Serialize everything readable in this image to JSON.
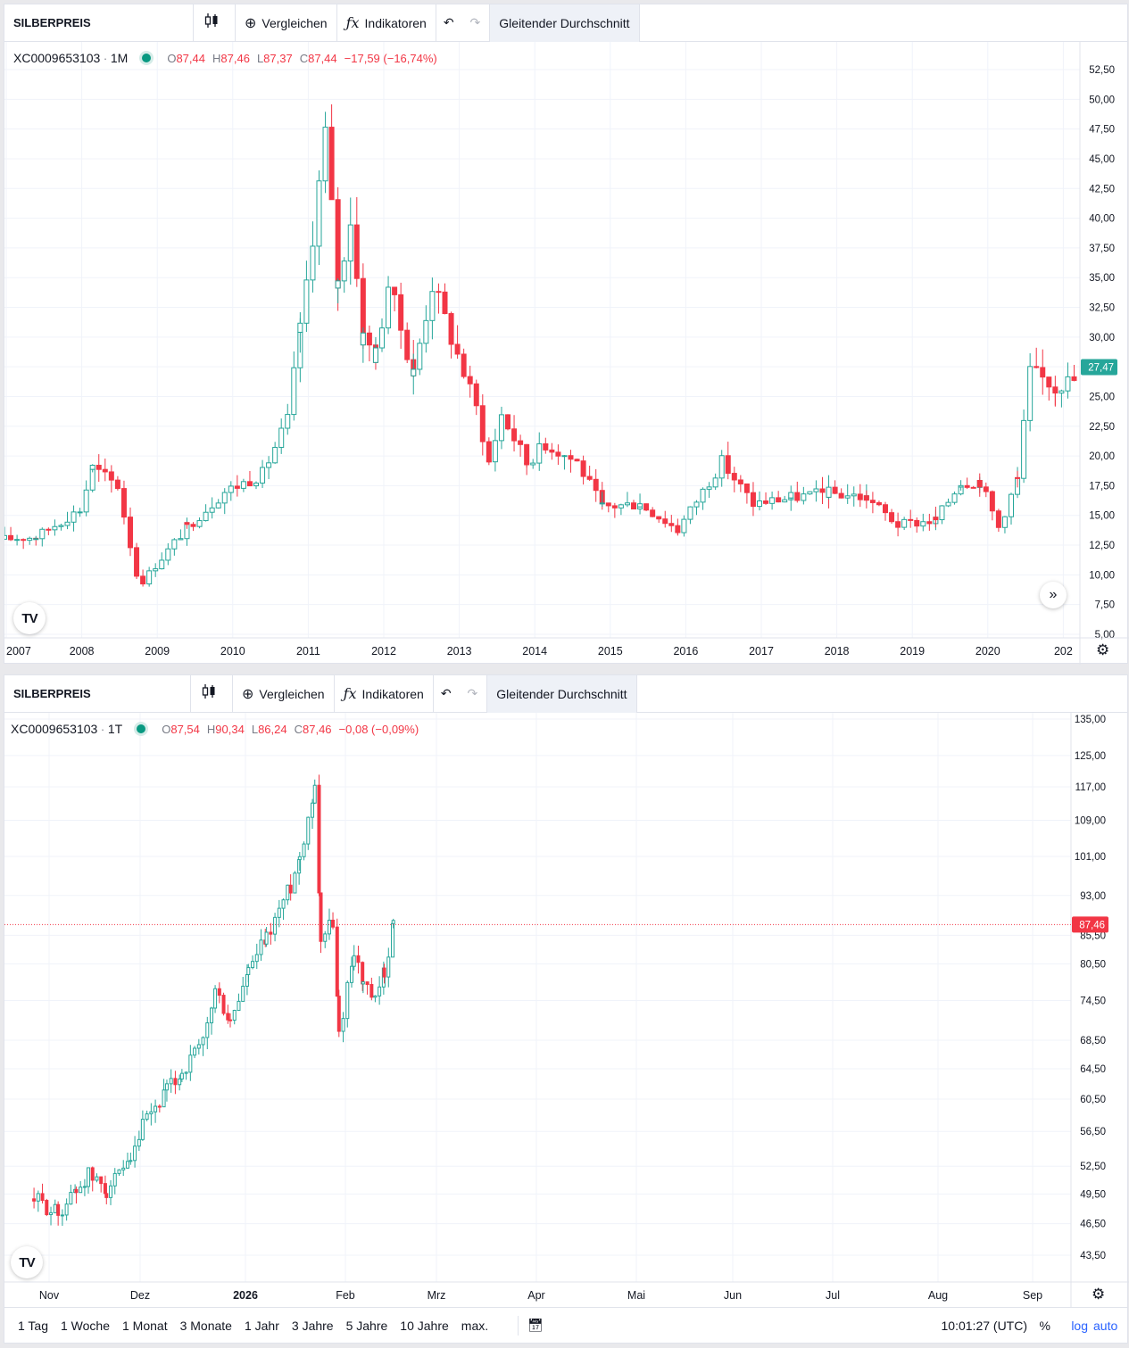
{
  "charts": [
    {
      "toolbar": {
        "symbol": "SILBERPREIS",
        "compare_label": "Vergleichen",
        "indicators_label": "Indikatoren",
        "moving_average_label": "Gleitender Durchschnitt"
      },
      "legend": {
        "code": "XC0009653103",
        "interval": "1M",
        "o_key": "O",
        "o": "87,44",
        "h_key": "H",
        "h": "87,46",
        "l_key": "L",
        "l": "87,37",
        "c_key": "C",
        "c": "87,44",
        "change": "−17,59 (−16,74%)"
      },
      "y_tick_labels": [
        "52,50",
        "50,00",
        "47,50",
        "45,00",
        "42,50",
        "40,00",
        "37,50",
        "35,00",
        "32,50",
        "30,00",
        "27,50",
        "25,00",
        "22,50",
        "20,00",
        "17,50",
        "15,00",
        "12,50",
        "10,00",
        "7,50",
        "5,00"
      ],
      "x_tick_labels": [
        "2007",
        "2008",
        "2009",
        "2010",
        "2011",
        "2012",
        "2013",
        "2014",
        "2015",
        "2016",
        "2017",
        "2018",
        "2019",
        "2020",
        "202"
      ],
      "last_price_label": "27,47",
      "last_price_color": "#26a69a"
    },
    {
      "toolbar": {
        "symbol": "SILBERPREIS",
        "compare_label": "Vergleichen",
        "indicators_label": "Indikatoren",
        "moving_average_label": "Gleitender Durchschnitt"
      },
      "legend": {
        "code": "XC0009653103",
        "interval": "1T",
        "o_key": "O",
        "o": "87,54",
        "h_key": "H",
        "h": "90,34",
        "l_key": "L",
        "l": "86,24",
        "c_key": "C",
        "c": "87,46",
        "change": "−0,08 (−0,09%)"
      },
      "y_tick_labels": [
        "135,00",
        "125,00",
        "117,00",
        "109,00",
        "101,00",
        "93,00",
        "85,50",
        "80,50",
        "74,50",
        "68,50",
        "64,50",
        "60,50",
        "56,50",
        "52,50",
        "49,50",
        "46,50",
        "43,50"
      ],
      "x_tick_labels": [
        "Nov",
        "Dez",
        "2026",
        "Feb",
        "Mrz",
        "Apr",
        "Mai",
        "Jun",
        "Jul",
        "Aug",
        "Sep"
      ],
      "last_price_label": "87,46",
      "last_price_color": "#f23645"
    }
  ],
  "bottom_bar": {
    "ranges": [
      "1 Tag",
      "1 Woche",
      "1 Monat",
      "3 Monate",
      "1 Jahr",
      "3 Jahre",
      "5 Jahre",
      "10 Jahre",
      "max."
    ],
    "time": "10:01:27 (UTC)",
    "percent_label": "%",
    "log_label": "log",
    "auto_label": "auto"
  },
  "colors": {
    "up": "#26a69a",
    "down": "#f23645",
    "accent": "#2962ff"
  },
  "icons": [
    "candles-icon",
    "plus-circle-icon",
    "fx-icon",
    "undo-icon",
    "redo-icon",
    "gear-icon",
    "scroll-right-icon",
    "calendar-icon",
    "tradingview-logo"
  ],
  "chart_data": [
    {
      "type": "candlestick",
      "title": "SILBERPREIS",
      "interval": "1M",
      "x_range": [
        "2007",
        "2021"
      ],
      "ylim": [
        5,
        52.5
      ],
      "grid": true,
      "anchors": [
        [
          "2007-01",
          13.0
        ],
        [
          "2007-06",
          13.2
        ],
        [
          "2008-01",
          15.5
        ],
        [
          "2008-03",
          19.0
        ],
        [
          "2008-07",
          17.5
        ],
        [
          "2008-10",
          10.0
        ],
        [
          "2008-11",
          9.5
        ],
        [
          "2009-06",
          14.0
        ],
        [
          "2009-12",
          17.0
        ],
        [
          "2010-06",
          18.5
        ],
        [
          "2010-10",
          23.0
        ],
        [
          "2010-12",
          30.5
        ],
        [
          "2011-04",
          47.0
        ],
        [
          "2011-06",
          34.5
        ],
        [
          "2011-08",
          40.0
        ],
        [
          "2011-10",
          30.0
        ],
        [
          "2011-12",
          28.5
        ],
        [
          "2012-02",
          34.5
        ],
        [
          "2012-06",
          27.0
        ],
        [
          "2012-09",
          34.5
        ],
        [
          "2012-12",
          30.0
        ],
        [
          "2013-04",
          24.0
        ],
        [
          "2013-06",
          19.5
        ],
        [
          "2013-08",
          23.5
        ],
        [
          "2013-12",
          19.5
        ],
        [
          "2014-03",
          21.0
        ],
        [
          "2014-08",
          19.5
        ],
        [
          "2014-12",
          15.7
        ],
        [
          "2015-06",
          16.0
        ],
        [
          "2015-12",
          13.8
        ],
        [
          "2016-07",
          19.5
        ],
        [
          "2016-12",
          16.0
        ],
        [
          "2017-06",
          16.5
        ],
        [
          "2017-12",
          16.9
        ],
        [
          "2018-06",
          16.5
        ],
        [
          "2018-11",
          14.2
        ],
        [
          "2019-05",
          14.6
        ],
        [
          "2019-09",
          17.8
        ],
        [
          "2019-12",
          17.9
        ],
        [
          "2020-03",
          14.0
        ],
        [
          "2020-06",
          18.0
        ],
        [
          "2020-08",
          27.0
        ],
        [
          "2020-12",
          26.0
        ],
        [
          "2021-04",
          26.5
        ]
      ],
      "last": {
        "label": "27,47",
        "value": 27.47
      }
    },
    {
      "type": "candlestick",
      "title": "SILBERPREIS",
      "interval": "1T",
      "x_range": [
        "2025-10-25",
        "2026-09-15"
      ],
      "ylim": [
        43.5,
        135
      ],
      "grid": true,
      "anchors": [
        [
          "2025-10-27",
          49.0
        ],
        [
          "2025-11-04",
          47.5
        ],
        [
          "2025-11-10",
          50.0
        ],
        [
          "2025-11-14",
          51.5
        ],
        [
          "2025-11-20",
          50.0
        ],
        [
          "2025-11-28",
          52.5
        ],
        [
          "2025-12-02",
          57.0
        ],
        [
          "2025-12-10",
          61.5
        ],
        [
          "2025-12-15",
          64.0
        ],
        [
          "2025-12-22",
          68.0
        ],
        [
          "2025-12-26",
          76.0
        ],
        [
          "2025-12-31",
          71.0
        ],
        [
          "2026-01-06",
          79.0
        ],
        [
          "2026-01-12",
          85.0
        ],
        [
          "2026-01-20",
          95.0
        ],
        [
          "2026-01-23",
          101.0
        ],
        [
          "2026-01-28",
          117.0
        ],
        [
          "2026-01-30",
          85.0
        ],
        [
          "2026-02-03",
          88.0
        ],
        [
          "2026-02-05",
          69.0
        ],
        [
          "2026-02-10",
          83.0
        ],
        [
          "2026-02-13",
          77.0
        ],
        [
          "2026-02-17",
          74.0
        ],
        [
          "2026-02-20",
          79.0
        ],
        [
          "2026-02-23",
          87.46
        ]
      ],
      "last": {
        "label": "87,46",
        "value": 87.46
      }
    }
  ]
}
